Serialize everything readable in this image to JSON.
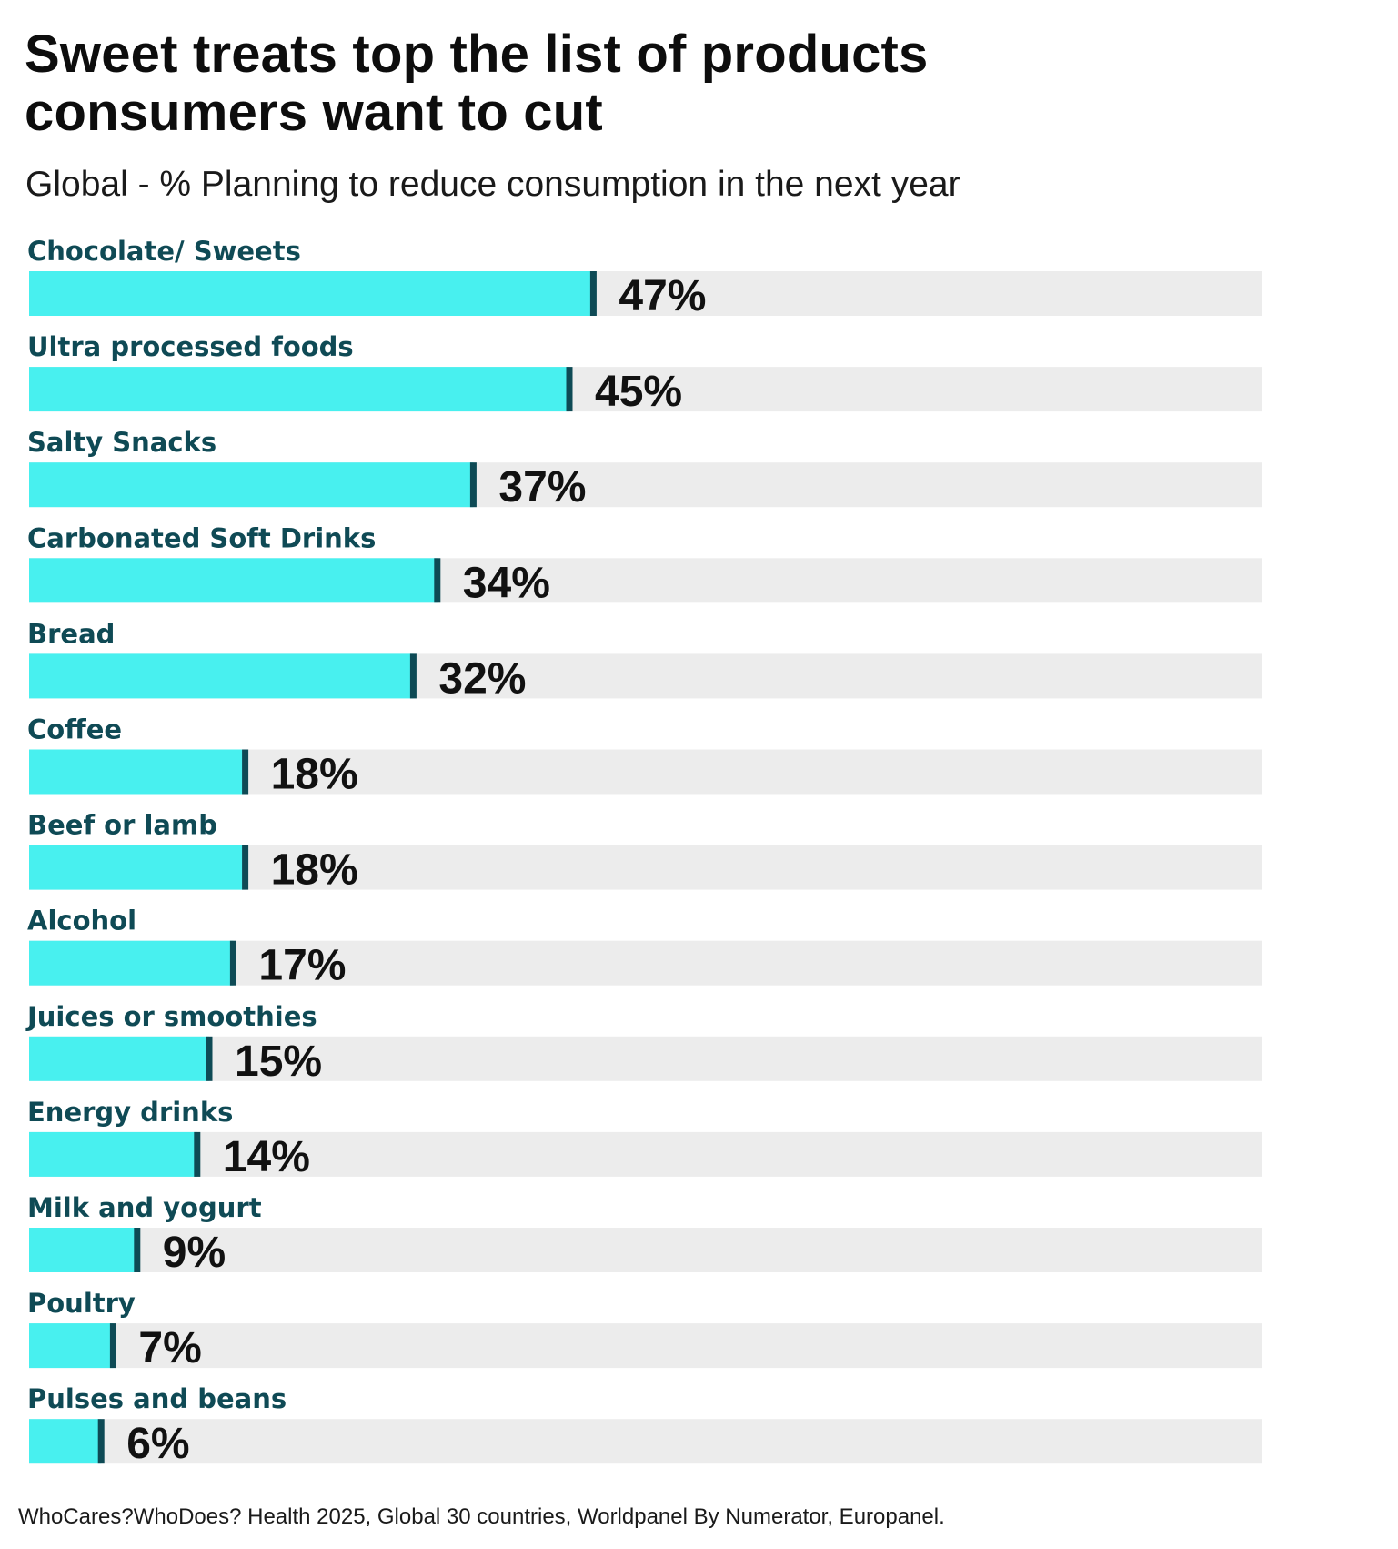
{
  "header": {
    "title": "Sweet treats top the list of products consumers want to cut",
    "subtitle": "Global - % Planning to reduce consumption in the next year"
  },
  "footer": {
    "source": "WhoCares?WhoDoes? Health 2025, Global 30 countries, Worldpanel By Numerator, Europanel."
  },
  "colors": {
    "bar": "#48f0ef",
    "track": "#ececec",
    "marker": "#0e4a55",
    "label": "#0f4a55",
    "value": "#111111"
  },
  "chart_data": {
    "type": "bar",
    "orientation": "horizontal",
    "title": "Sweet treats top the list of products consumers want to cut",
    "subtitle": "Global - % Planning to reduce consumption in the next year",
    "xlabel": "",
    "ylabel": "",
    "xlim": [
      0,
      100
    ],
    "grid": false,
    "legend": "none",
    "unit": "%",
    "categories": [
      "Chocolate/ Sweets",
      "Ultra processed foods",
      "Salty Snacks",
      "Carbonated Soft Drinks",
      "Bread",
      "Coffee",
      "Beef or lamb",
      "Alcohol",
      "Juices or smoothies",
      "Energy drinks",
      "Milk and yogurt",
      "Poultry",
      "Pulses and beans"
    ],
    "values": [
      47,
      45,
      37,
      34,
      32,
      18,
      18,
      17,
      15,
      14,
      9,
      7,
      6
    ],
    "data_labels": [
      "47%",
      "45%",
      "37%",
      "34%",
      "32%",
      "18%",
      "18%",
      "17%",
      "15%",
      "14%",
      "9%",
      "7%",
      "6%"
    ]
  }
}
